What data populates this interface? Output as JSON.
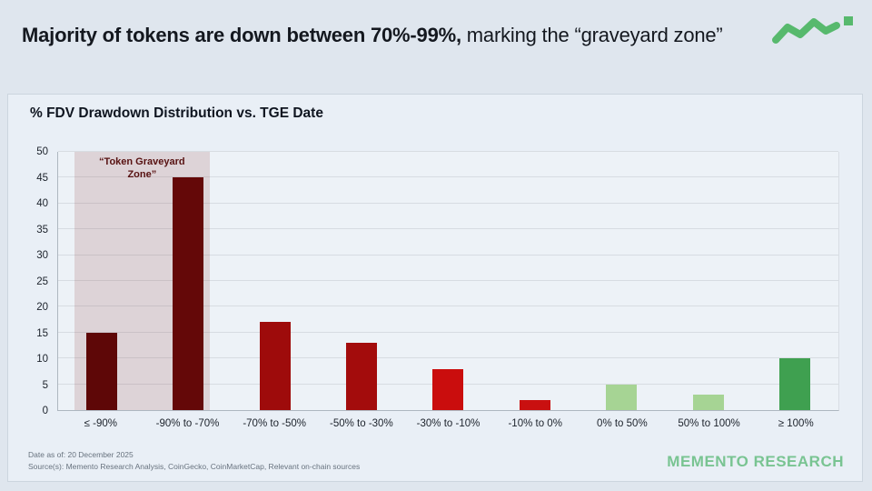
{
  "header": {
    "title_bold": "Majority of tokens are down between 70%-99%,",
    "title_regular": " marking the “graveyard zone”"
  },
  "logo": {
    "name": "memento-zigzag-logo",
    "color": "#57b96d"
  },
  "panel": {
    "chart_title": "% FDV Drawdown Distribution vs. TGE Date",
    "footnote_line1": "Date as of: 20 December 2025",
    "footnote_line2": "Source(s): Memento Research Analysis, CoinGecko, CoinMarketCap, Relevant on-chain sources",
    "brand": "MEMENTO RESEARCH"
  },
  "chart_data": {
    "type": "bar",
    "title": "% FDV Drawdown Distribution vs. TGE Date",
    "categories": [
      "≤ -90%",
      "-90% to -70%",
      "-70% to -50%",
      "-50% to -30%",
      "-30% to -10%",
      "-10% to 0%",
      "0% to 50%",
      "50% to 100%",
      "≥ 100%"
    ],
    "values": [
      15,
      45,
      17,
      13,
      8,
      2,
      5,
      3,
      10
    ],
    "bar_colors": [
      "#5e0707",
      "#640808",
      "#9e0b0b",
      "#a30c0c",
      "#ca0d0d",
      "#c91010",
      "#a6d494",
      "#a6d494",
      "#3fa050"
    ],
    "xlabel": "",
    "ylabel": "",
    "ylim": [
      0,
      50
    ],
    "y_ticks": [
      0,
      5,
      10,
      15,
      20,
      25,
      30,
      35,
      40,
      45,
      50
    ],
    "grid": "horizontal",
    "legend": "none",
    "annotation": {
      "label": "“Token Graveyard Zone”",
      "covers_categories": [
        "≤ -90%",
        "-90% to -70%"
      ],
      "zone_fill": "rgba(143,62,62,0.17)",
      "label_color": "#571111"
    }
  }
}
